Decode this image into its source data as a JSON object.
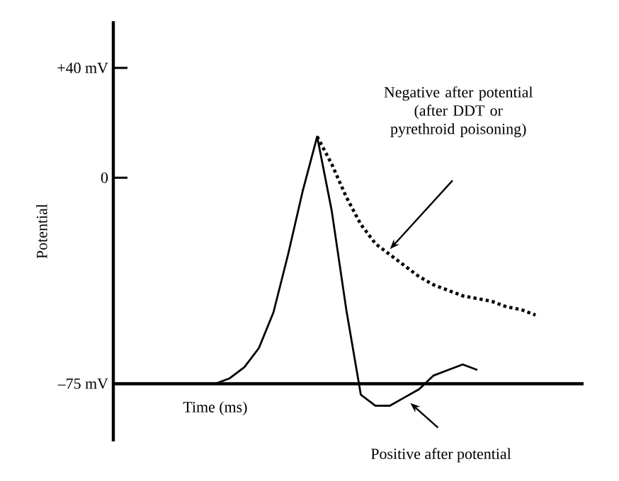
{
  "chart_data": {
    "type": "line",
    "xlabel": "Time (ms)",
    "ylabel": "Potential",
    "categories": [
      null,
      null,
      null,
      null,
      null,
      null,
      null,
      null,
      null,
      null,
      null,
      null,
      null,
      null,
      null,
      null,
      null,
      null,
      null,
      null,
      null,
      null,
      null,
      null,
      null,
      null,
      null,
      null,
      null,
      null
    ],
    "series": [
      {
        "color": "#000000",
        "line_style": "solid",
        "values": [
          -75,
          -75,
          -75,
          -75,
          -75,
          -75,
          -75,
          -75,
          -73,
          -69,
          -62,
          -49,
          -28,
          -5,
          15,
          -12,
          -48,
          -79,
          -83,
          -83,
          -80,
          -77,
          -72,
          -70,
          -68,
          -70,
          null,
          null,
          null,
          null
        ]
      },
      {
        "color": "#000000",
        "line_style": "dotted",
        "values": [
          null,
          null,
          null,
          null,
          null,
          null,
          null,
          null,
          null,
          null,
          null,
          null,
          null,
          null,
          15,
          5,
          -7,
          -17,
          -24,
          -28,
          -32,
          -36,
          -39,
          -41,
          -43,
          -44,
          -45,
          -47,
          -48,
          -50
        ]
      }
    ],
    "ylim": [
      -96,
      57
    ],
    "yticks": [
      {
        "value": 40,
        "label": "+40 mV"
      },
      0,
      {
        "value": -75,
        "label": "–75 mV"
      }
    ],
    "ref_lines": [
      {
        "axis": "y",
        "value": -75
      }
    ],
    "annotations": [
      "Negative after potential (after DDT or pyrethroid poisoning)",
      "Positive after potential"
    ],
    "grid": false,
    "marker": "none"
  }
}
